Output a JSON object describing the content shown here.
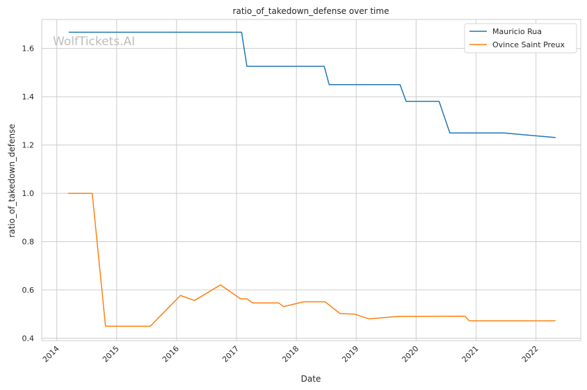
{
  "chart_data": {
    "type": "line",
    "title": "ratio_of_takedown_defense over time",
    "xlabel": "Date",
    "ylabel": "ratio_of_takedown_defense",
    "watermark": "WolfTickets.AI",
    "x_ticks": [
      "2014",
      "2015",
      "2016",
      "2017",
      "2018",
      "2019",
      "2020",
      "2021",
      "2022"
    ],
    "y_ticks": [
      "0.4",
      "0.6",
      "0.8",
      "1.0",
      "1.2",
      "1.4",
      "1.6"
    ],
    "xlim": [
      "2013-10-01",
      "2022-10-01"
    ],
    "ylim": [
      0.39,
      1.72
    ],
    "grid": true,
    "legend_position": "top-right",
    "series": [
      {
        "name": "Mauricio Rua",
        "color": "#1f77b4",
        "points": [
          [
            "2014-03-15",
            1.667
          ],
          [
            "2017-02-01",
            1.667
          ],
          [
            "2017-03-05",
            1.526
          ],
          [
            "2018-06-20",
            1.526
          ],
          [
            "2018-07-20",
            1.45
          ],
          [
            "2019-09-25",
            1.45
          ],
          [
            "2019-11-01",
            1.381
          ],
          [
            "2020-05-20",
            1.381
          ],
          [
            "2020-07-25",
            1.25
          ],
          [
            "2021-06-20",
            1.25
          ],
          [
            "2022-05-01",
            1.231
          ]
        ]
      },
      {
        "name": "Ovince Saint Preux",
        "color": "#ff7f0e",
        "points": [
          [
            "2014-03-10",
            1.0
          ],
          [
            "2014-08-05",
            1.0
          ],
          [
            "2014-10-25",
            0.45
          ],
          [
            "2015-07-25",
            0.45
          ],
          [
            "2016-01-25",
            0.577
          ],
          [
            "2016-04-20",
            0.556
          ],
          [
            "2016-09-25",
            0.621
          ],
          [
            "2017-01-25",
            0.563
          ],
          [
            "2017-03-05",
            0.563
          ],
          [
            "2017-04-10",
            0.546
          ],
          [
            "2017-09-15",
            0.546
          ],
          [
            "2017-10-15",
            0.531
          ],
          [
            "2018-02-15",
            0.551
          ],
          [
            "2018-06-25",
            0.551
          ],
          [
            "2018-09-25",
            0.502
          ],
          [
            "2018-12-20",
            0.5
          ],
          [
            "2019-03-20",
            0.48
          ],
          [
            "2019-09-05",
            0.49
          ],
          [
            "2020-10-25",
            0.491
          ],
          [
            "2020-11-20",
            0.472
          ],
          [
            "2022-05-01",
            0.472
          ]
        ]
      }
    ]
  }
}
